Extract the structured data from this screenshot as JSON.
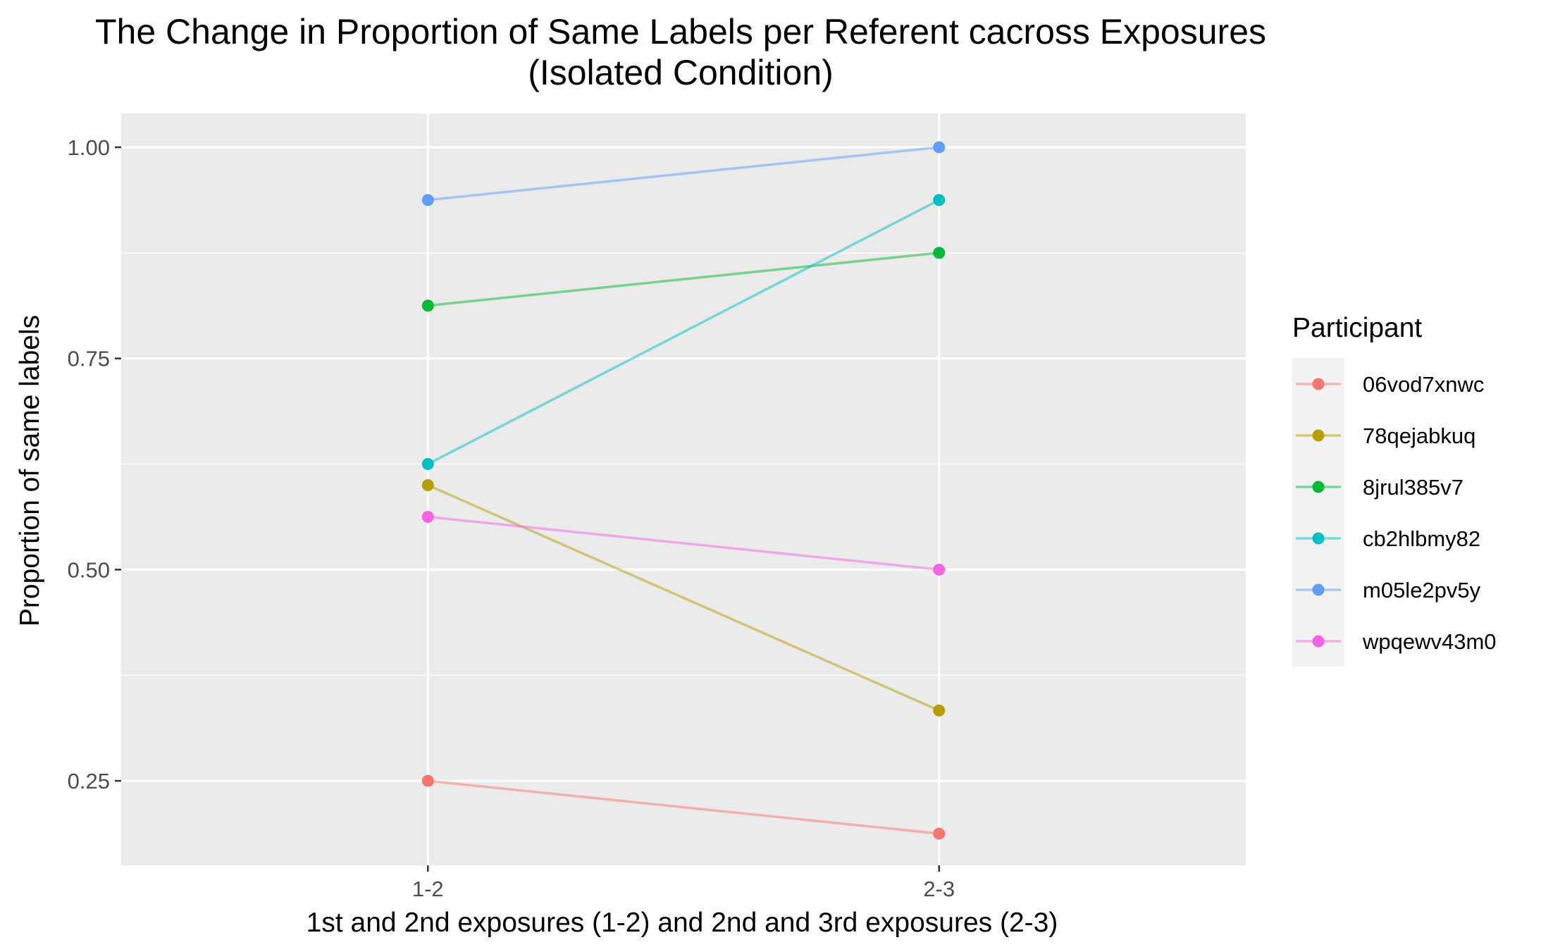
{
  "chart_data": {
    "type": "line",
    "title": "The Change in Proportion of Same Labels per Referent cacross Exposures",
    "subtitle": "(Isolated Condition)",
    "xlabel": "1st and 2nd exposures (1-2) and 2nd and 3rd exposures (2-3)",
    "ylabel": "Proportion of same labels",
    "categories": [
      "1-2",
      "2-3"
    ],
    "ylim": [
      0.15,
      1.04
    ],
    "yticks": [
      0.25,
      0.5,
      0.75,
      1.0
    ],
    "ytick_labels": [
      "0.25",
      "0.50",
      "0.75",
      "1.00"
    ],
    "grid": true,
    "background": "#ebebeb",
    "legend": {
      "title": "Participant",
      "position": "right"
    },
    "series": [
      {
        "name": "06vod7xnwc",
        "color": "#F8766D",
        "values": [
          0.25,
          0.1875
        ]
      },
      {
        "name": "78qejabkuq",
        "color": "#B79F00",
        "values": [
          0.6,
          0.3333
        ]
      },
      {
        "name": "8jrul385v7",
        "color": "#00BA38",
        "values": [
          0.8125,
          0.875
        ]
      },
      {
        "name": "cb2hlbmy82",
        "color": "#00BFC4",
        "values": [
          0.625,
          0.9375
        ]
      },
      {
        "name": "m05le2pv5y",
        "color": "#619CFF",
        "values": [
          0.9375,
          1.0
        ]
      },
      {
        "name": "wpqewv43m0",
        "color": "#F564E3",
        "values": [
          0.5625,
          0.5
        ]
      }
    ]
  }
}
